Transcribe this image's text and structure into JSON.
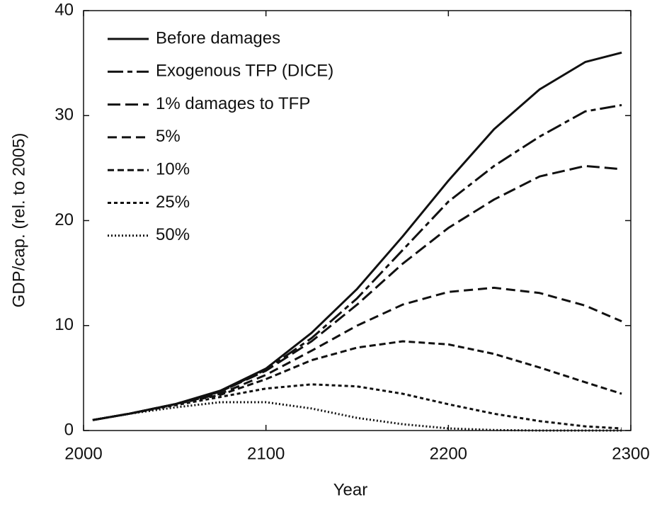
{
  "chart_data": {
    "type": "line",
    "x_label": "Year",
    "y_label": "GDP/cap. (rel. to 2005)",
    "x": [
      2005,
      2025,
      2050,
      2075,
      2100,
      2125,
      2150,
      2175,
      2200,
      2225,
      2250,
      2275,
      2295
    ],
    "xlim": [
      2000,
      2300
    ],
    "xticks": [
      2000,
      2100,
      2200,
      2300
    ],
    "ylim": [
      0,
      40
    ],
    "yticks": [
      0,
      10,
      20,
      30,
      40
    ],
    "legend_position": "upper-left",
    "series": [
      {
        "name": "Before damages",
        "color": "#111111",
        "dash": "none",
        "values": [
          1.0,
          1.6,
          2.5,
          3.8,
          5.9,
          9.3,
          13.5,
          18.5,
          23.8,
          28.7,
          32.5,
          35.1,
          36.0
        ]
      },
      {
        "name": "Exogenous TFP (DICE)",
        "color": "#111111",
        "dash": "22 6 7 6",
        "values": [
          1.0,
          1.6,
          2.5,
          3.7,
          5.8,
          8.8,
          12.6,
          17.2,
          21.8,
          25.2,
          28.0,
          30.4,
          31.0
        ]
      },
      {
        "name": "1% damages to TFP",
        "color": "#111111",
        "dash": "18 7",
        "values": [
          1.0,
          1.6,
          2.5,
          3.7,
          5.7,
          8.5,
          12.0,
          15.9,
          19.3,
          22.0,
          24.2,
          25.2,
          24.9
        ]
      },
      {
        "name": "5%",
        "color": "#111111",
        "dash": "13 7",
        "values": [
          1.0,
          1.6,
          2.5,
          3.5,
          5.3,
          7.6,
          10.0,
          12.0,
          13.2,
          13.6,
          13.1,
          11.9,
          10.4
        ]
      },
      {
        "name": "10%",
        "color": "#111111",
        "dash": "9 5",
        "values": [
          1.0,
          1.6,
          2.5,
          3.4,
          4.9,
          6.7,
          7.9,
          8.5,
          8.2,
          7.3,
          6.0,
          4.6,
          3.5
        ]
      },
      {
        "name": "25%",
        "color": "#111111",
        "dash": "5 4",
        "values": [
          1.0,
          1.6,
          2.4,
          3.2,
          4.0,
          4.4,
          4.2,
          3.5,
          2.5,
          1.6,
          0.9,
          0.4,
          0.2
        ]
      },
      {
        "name": "50%",
        "color": "#111111",
        "dash": "2 3",
        "values": [
          1.0,
          1.6,
          2.2,
          2.7,
          2.7,
          2.1,
          1.2,
          0.6,
          0.2,
          0.05,
          0,
          0,
          0
        ]
      }
    ]
  }
}
